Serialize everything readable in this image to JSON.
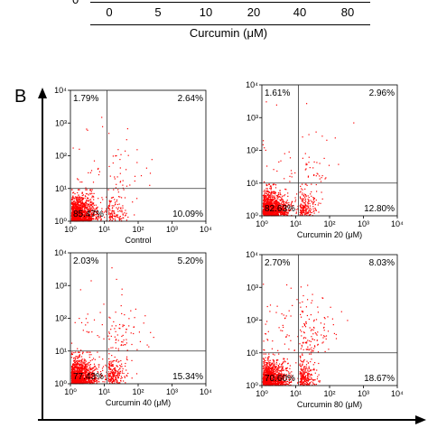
{
  "top_axis": {
    "zero_label": "0",
    "ticks": [
      "0",
      "5",
      "10",
      "20",
      "40",
      "80"
    ],
    "xlabel": "Curcumin (μM)"
  },
  "panel_label": "B",
  "tick_labels": [
    "10⁰",
    "10¹",
    "10²",
    "10³",
    "10⁴"
  ],
  "chart_data": [
    {
      "type": "scatter",
      "title": "Control",
      "xscale": "log",
      "yscale": "log",
      "xlim": [
        1,
        10000
      ],
      "ylim": [
        1,
        10000
      ],
      "quadrant_lines": {
        "x": 12,
        "y": 10
      },
      "quadrants": {
        "upper_left": "1.79%",
        "upper_right": "2.64%",
        "lower_left": "85.47%",
        "lower_right": "10.09%"
      },
      "points_color": "#ff0000"
    },
    {
      "type": "scatter",
      "title": "Curcumin 20 (μM)",
      "xscale": "log",
      "yscale": "log",
      "xlim": [
        1,
        10000
      ],
      "ylim": [
        1,
        10000
      ],
      "quadrant_lines": {
        "x": 12,
        "y": 10
      },
      "quadrants": {
        "upper_left": "1.61%",
        "upper_right": "2.96%",
        "lower_left": "82.63%",
        "lower_right": "12.80%"
      },
      "points_color": "#ff0000"
    },
    {
      "type": "scatter",
      "title": "Curcumin 40 (μM)",
      "xscale": "log",
      "yscale": "log",
      "xlim": [
        1,
        10000
      ],
      "ylim": [
        1,
        10000
      ],
      "quadrant_lines": {
        "x": 12,
        "y": 10
      },
      "quadrants": {
        "upper_left": "2.03%",
        "upper_right": "5.20%",
        "lower_left": "77.43%",
        "lower_right": "15.34%"
      },
      "points_color": "#ff0000"
    },
    {
      "type": "scatter",
      "title": "Curcumin 80 (μM)",
      "xscale": "log",
      "yscale": "log",
      "xlim": [
        1,
        10000
      ],
      "ylim": [
        1,
        10000
      ],
      "quadrant_lines": {
        "x": 12,
        "y": 10
      },
      "quadrants": {
        "upper_left": "2.70%",
        "upper_right": "8.03%",
        "lower_left": "70.60%",
        "lower_right": "18.67%"
      },
      "points_color": "#ff0000"
    }
  ]
}
